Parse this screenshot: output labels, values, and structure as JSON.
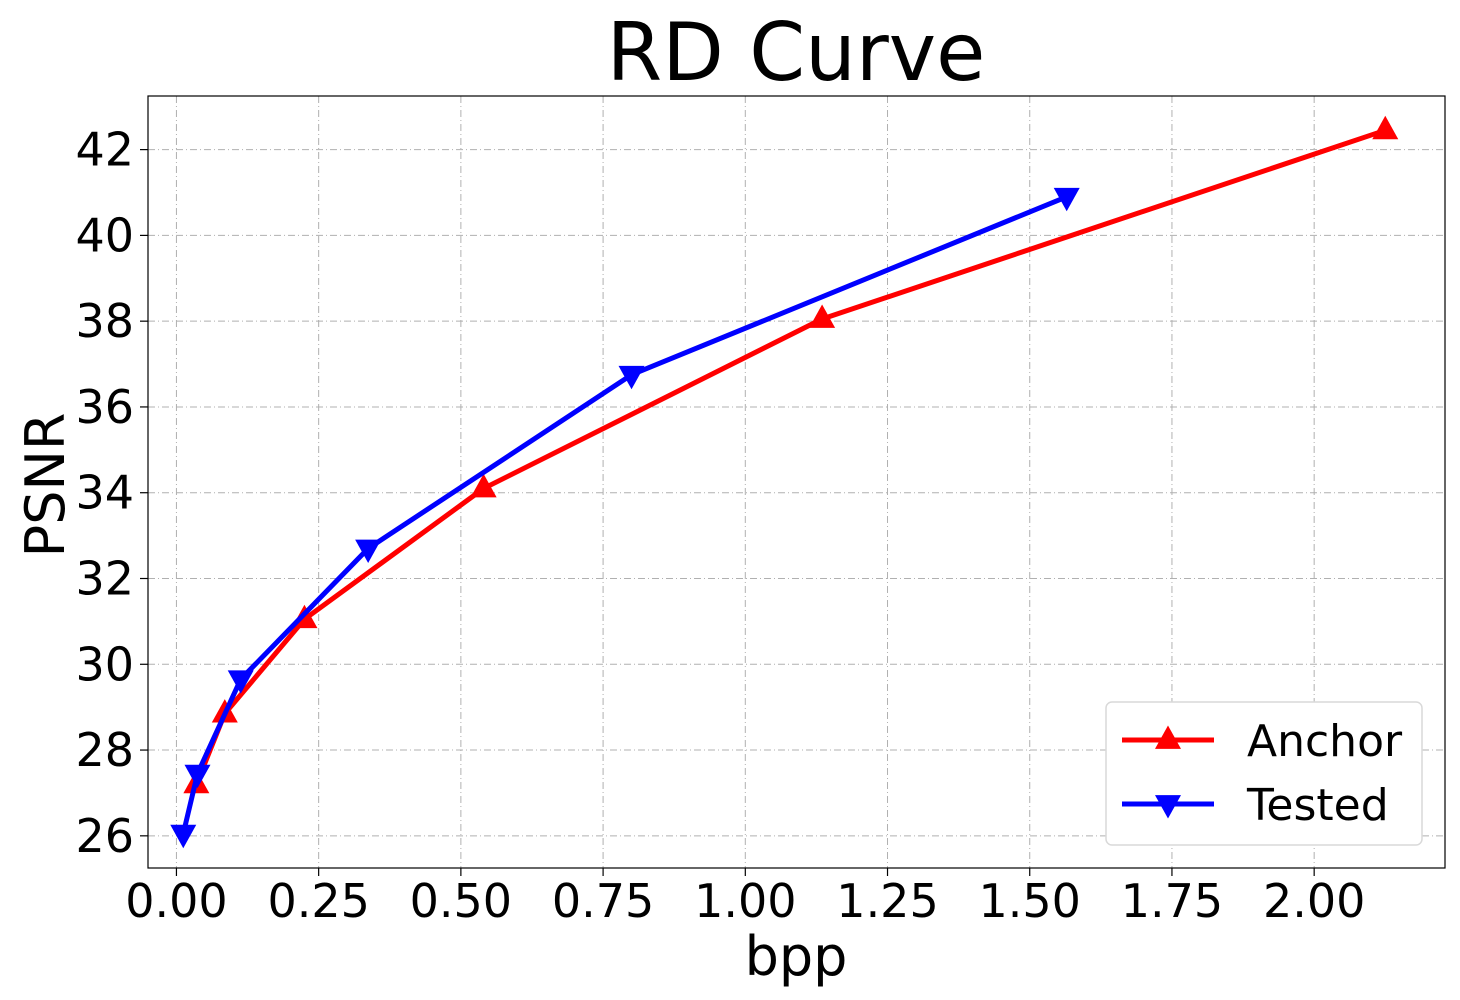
{
  "chart_data": {
    "type": "line",
    "title": "RD Curve",
    "xlabel": "bpp",
    "ylabel": "PSNR",
    "xlim": [
      -0.05,
      2.23
    ],
    "ylim": [
      25.25,
      43.25
    ],
    "xticks": [
      0.0,
      0.25,
      0.5,
      0.75,
      1.0,
      1.25,
      1.5,
      1.75,
      2.0
    ],
    "xtick_labels": [
      "0.00",
      "0.25",
      "0.50",
      "0.75",
      "1.00",
      "1.25",
      "1.50",
      "1.75",
      "2.00"
    ],
    "yticks": [
      26,
      28,
      30,
      32,
      34,
      36,
      38,
      40,
      42
    ],
    "ytick_labels": [
      "26",
      "28",
      "30",
      "32",
      "34",
      "36",
      "38",
      "40",
      "42"
    ],
    "grid": true,
    "legend_position": "lower-right",
    "series": [
      {
        "name": "Anchor",
        "color": "#ff0000",
        "marker": "triangle-up",
        "x": [
          0.035,
          0.085,
          0.225,
          0.54,
          1.135,
          2.125
        ],
        "y": [
          27.2,
          28.85,
          31.05,
          34.1,
          38.05,
          42.45
        ]
      },
      {
        "name": "Tested",
        "color": "#0000ff",
        "marker": "triangle-down",
        "x": [
          0.012,
          0.037,
          0.113,
          0.337,
          0.8,
          1.565
        ],
        "y": [
          26.05,
          27.45,
          29.65,
          32.7,
          36.75,
          40.9
        ]
      }
    ]
  }
}
